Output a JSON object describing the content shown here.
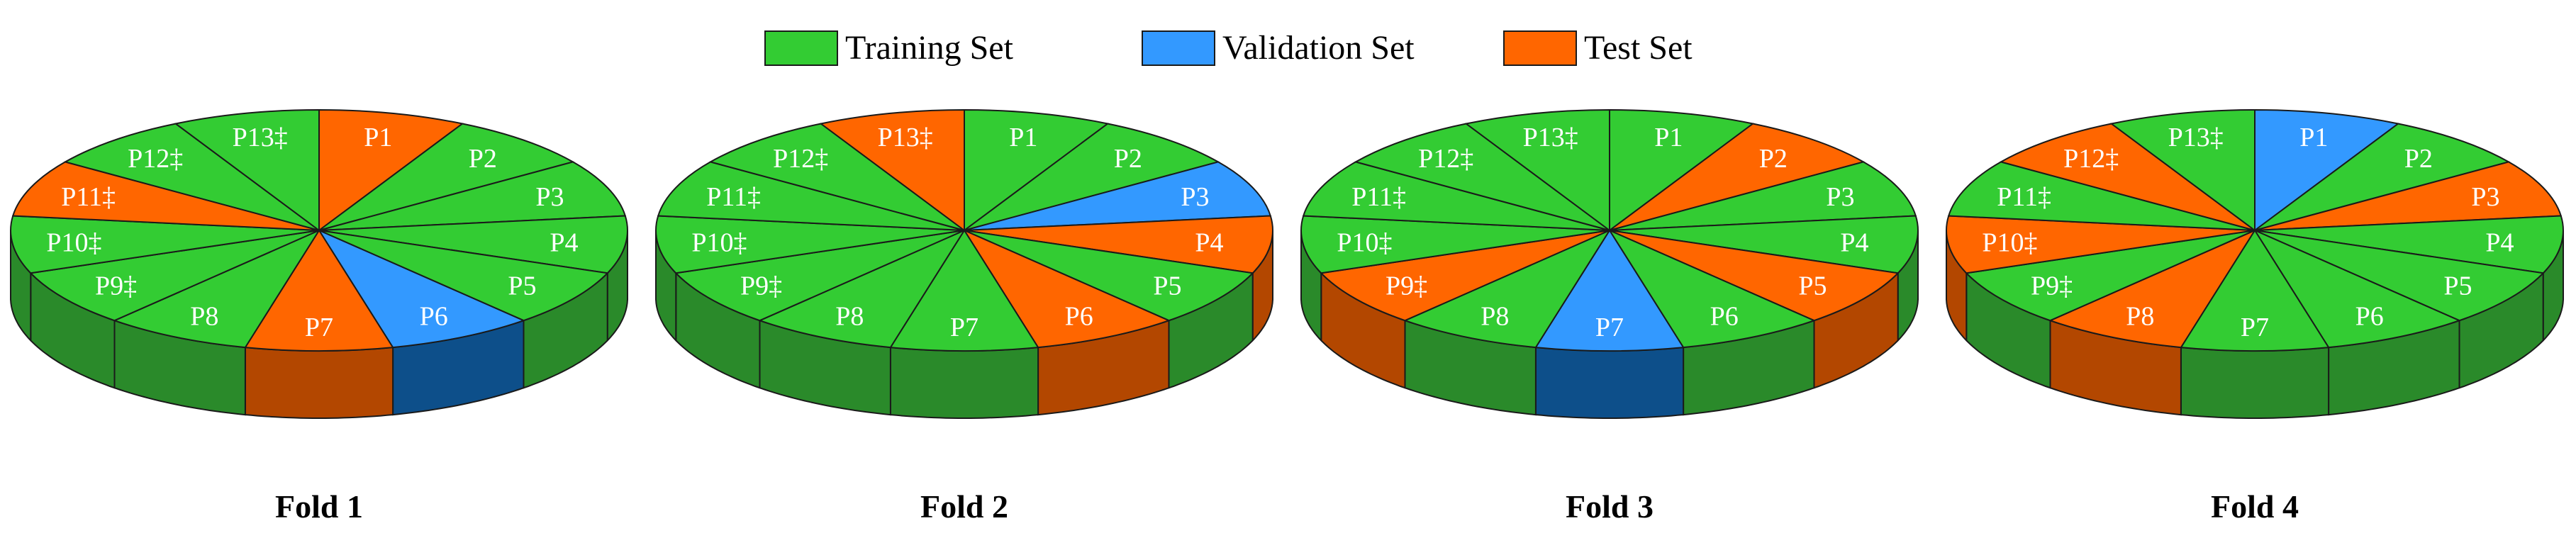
{
  "legend": [
    {
      "label": "Training Set",
      "color": "#33cc33"
    },
    {
      "label": "Validation Set",
      "color": "#3399ff"
    },
    {
      "label": "Test Set",
      "color": "#ff6600"
    }
  ],
  "slices": [
    "P1",
    "P2",
    "P3",
    "P4",
    "P5",
    "P6",
    "P7",
    "P8",
    "P9‡",
    "P10‡",
    "P11‡",
    "P12‡",
    "P13‡"
  ],
  "folds": [
    {
      "title": "Fold 1",
      "assignment": [
        "test",
        "train",
        "train",
        "train",
        "train",
        "val",
        "test",
        "train",
        "train",
        "train",
        "test",
        "train",
        "train"
      ]
    },
    {
      "title": "Fold 2",
      "assignment": [
        "train",
        "train",
        "val",
        "test",
        "train",
        "test",
        "train",
        "train",
        "train",
        "train",
        "train",
        "train",
        "test"
      ]
    },
    {
      "title": "Fold 3",
      "assignment": [
        "train",
        "test",
        "train",
        "train",
        "test",
        "train",
        "val",
        "train",
        "test",
        "train",
        "train",
        "train",
        "train"
      ]
    },
    {
      "title": "Fold 4",
      "assignment": [
        "val",
        "train",
        "test",
        "train",
        "train",
        "train",
        "train",
        "test",
        "train",
        "test",
        "train",
        "test",
        "train"
      ]
    }
  ],
  "colors": {
    "train": "#33cc33",
    "val": "#3399ff",
    "test": "#ff6600",
    "train_side": "#2a8a2a",
    "val_side": "#0d4f8a",
    "test_side": "#b34700",
    "outline": "#1a1a1a"
  }
}
